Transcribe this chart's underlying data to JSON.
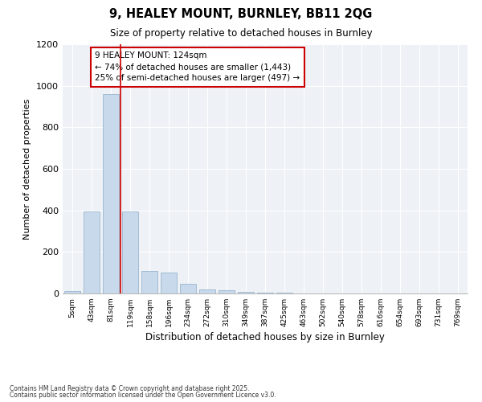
{
  "title_line1": "9, HEALEY MOUNT, BURNLEY, BB11 2QG",
  "title_line2": "Size of property relative to detached houses in Burnley",
  "xlabel": "Distribution of detached houses by size in Burnley",
  "ylabel": "Number of detached properties",
  "categories": [
    "5sqm",
    "43sqm",
    "81sqm",
    "119sqm",
    "158sqm",
    "196sqm",
    "234sqm",
    "272sqm",
    "310sqm",
    "349sqm",
    "387sqm",
    "425sqm",
    "463sqm",
    "502sqm",
    "540sqm",
    "578sqm",
    "616sqm",
    "654sqm",
    "693sqm",
    "731sqm",
    "769sqm"
  ],
  "values": [
    10,
    395,
    960,
    395,
    107,
    100,
    47,
    20,
    17,
    8,
    4,
    3,
    0,
    0,
    0,
    0,
    0,
    0,
    0,
    0,
    0
  ],
  "bar_color": "#c8d9eb",
  "bar_edge_color": "#9ab4cd",
  "annotation_text": "9 HEALEY MOUNT: 124sqm\n← 74% of detached houses are smaller (1,443)\n25% of semi-detached houses are larger (497) →",
  "annotation_box_color": "#ffffff",
  "annotation_box_edge_color": "#cc0000",
  "vline_color": "#cc0000",
  "vline_x": 2.5,
  "ylim": [
    0,
    1200
  ],
  "yticks": [
    0,
    200,
    400,
    600,
    800,
    1000,
    1200
  ],
  "footer_line1": "Contains HM Land Registry data © Crown copyright and database right 2025.",
  "footer_line2": "Contains public sector information licensed under the Open Government Licence v3.0.",
  "bg_color": "#ffffff",
  "plot_bg_color": "#eef2f7"
}
